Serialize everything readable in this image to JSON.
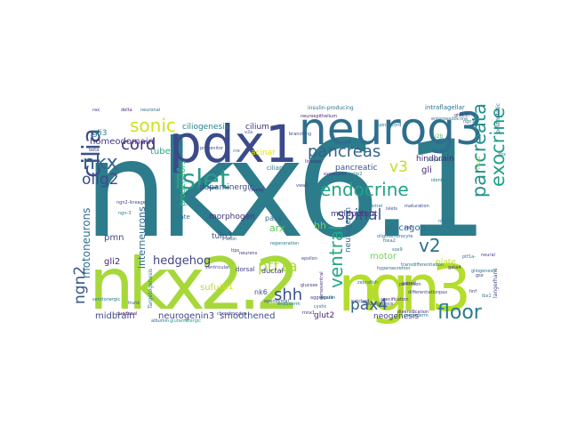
{
  "wordcloud": {
    "words": [
      {
        "text": "nkx6.1",
        "color": "#2c7c8c"
      },
      {
        "text": "nkx2.2",
        "color": "#a6d83a"
      },
      {
        "text": "ngn3",
        "color": "#b4dd2c"
      },
      {
        "text": "pdx1",
        "color": "#3b4a8a"
      },
      {
        "text": "neurog3",
        "color": "#2e6e8e"
      },
      {
        "text": "islet",
        "color": "#2a9a89"
      },
      {
        "text": "pancreas",
        "color": "#34638d"
      },
      {
        "text": "cilia",
        "color": "#3c4f8a"
      },
      {
        "text": "sonic",
        "color": "#d0e11c"
      },
      {
        "text": "nkx",
        "color": "#33628d"
      },
      {
        "text": "cord",
        "color": "#46337e"
      },
      {
        "text": "olig2",
        "color": "#3e4989"
      },
      {
        "text": "endocrine",
        "color": "#20a486"
      },
      {
        "text": "spinal",
        "color": "#39558c"
      },
      {
        "text": "v3",
        "color": "#c2df23"
      },
      {
        "text": "v2",
        "color": "#2c728e"
      },
      {
        "text": "pancreata",
        "color": "#21918c"
      },
      {
        "text": "exocrine",
        "color": "#1fa187"
      },
      {
        "text": "floor",
        "color": "#297b8e"
      },
      {
        "text": "ventral",
        "color": "#22a884"
      },
      {
        "text": "shh",
        "color": "#3b528b"
      },
      {
        "text": "pax4",
        "color": "#365c8d"
      },
      {
        "text": "ptf1a",
        "color": "#aadc32"
      },
      {
        "text": "hedgehog",
        "color": "#414487"
      },
      {
        "text": "ngn2",
        "color": "#38598c"
      },
      {
        "text": "motoneurons",
        "color": "#2d708e"
      },
      {
        "text": "interneurons",
        "color": "#306a8e"
      },
      {
        "text": "homeodomain",
        "color": "#453781"
      },
      {
        "text": "ciliogenesis",
        "color": "#25848e"
      },
      {
        "text": "cilium",
        "color": "#472d7b"
      },
      {
        "text": "gli3",
        "color": "#26828e"
      },
      {
        "text": "tube",
        "color": "#27ad81"
      },
      {
        "text": "glucagon",
        "color": "#2c728e"
      },
      {
        "text": "pancreatic",
        "color": "#3b528b"
      },
      {
        "text": "multipotent",
        "color": "#46327e"
      },
      {
        "text": "gli",
        "color": "#482878"
      },
      {
        "text": "hindbrain",
        "color": "#482173"
      },
      {
        "text": "dopaminergic",
        "color": "#3e4a89"
      },
      {
        "text": "progenitors",
        "color": "#35b779"
      },
      {
        "text": "morphogen",
        "color": "#46337e"
      },
      {
        "text": "tulp3",
        "color": "#3b528b"
      },
      {
        "text": "pmn",
        "color": "#3e4a89"
      },
      {
        "text": "arx",
        "color": "#5ec962"
      },
      {
        "text": "hh",
        "color": "#7ad151"
      },
      {
        "text": "motor",
        "color": "#75d054"
      },
      {
        "text": "neurogenin",
        "color": "#31688e"
      },
      {
        "text": "plate",
        "color": "#bddf26"
      },
      {
        "text": "gli2",
        "color": "#482677"
      },
      {
        "text": "sufu",
        "color": "#b5de2b"
      },
      {
        "text": "isl1",
        "color": "#d8e219"
      },
      {
        "text": "nk6",
        "color": "#3b528b"
      },
      {
        "text": "midbrain",
        "color": "#3e4c8a"
      },
      {
        "text": "neurogenin3",
        "color": "#3f4788"
      },
      {
        "text": "smoothened",
        "color": "#3d4d8a"
      },
      {
        "text": "glut2",
        "color": "#481f70"
      },
      {
        "text": "neogenesis",
        "color": "#424086"
      },
      {
        "text": "acinar",
        "color": "#dde318"
      },
      {
        "text": "pax6",
        "color": "#2e6d8e"
      },
      {
        "text": "ductal",
        "color": "#46327e"
      },
      {
        "text": "dorsal",
        "color": "#433e85"
      },
      {
        "text": "fate",
        "color": "#2d708e"
      },
      {
        "text": "insulin-producing",
        "color": "#2c728e"
      },
      {
        "text": "intraflagellar",
        "color": "#2c728e"
      },
      {
        "text": "postmitotic",
        "color": "#31688e"
      },
      {
        "text": "nkx2",
        "color": "#7ad151"
      },
      {
        "text": "langerhans",
        "color": "#3e4a89"
      },
      {
        "text": "ciliary",
        "color": "#2a788e"
      },
      {
        "text": "caudal",
        "color": "#46307e"
      },
      {
        "text": "neuronal",
        "color": "#31688e"
      },
      {
        "text": "delta",
        "color": "#46307e"
      },
      {
        "text": "rax",
        "color": "#433e85"
      },
      {
        "text": "v2b",
        "color": "#4ac16d"
      },
      {
        "text": "v2a",
        "color": "#38598c"
      },
      {
        "text": "progenitor",
        "color": "#3e4a89"
      },
      {
        "text": "albumin",
        "color": "#306a8e"
      },
      {
        "text": "glutamatergic",
        "color": "#1fa187"
      },
      {
        "text": "hypersecretion",
        "color": "#31688e"
      },
      {
        "text": "transdifferentiation",
        "color": "#2c728e"
      },
      {
        "text": "beta",
        "color": "#3b528b"
      },
      {
        "text": "duodenal",
        "color": "#471365"
      },
      {
        "text": "mnx1",
        "color": "#46307e"
      },
      {
        "text": "patched",
        "color": "#3e4a89"
      },
      {
        "text": "epsilon",
        "color": "#3e4a89"
      },
      {
        "text": "gliogenesis",
        "color": "#2c728e"
      },
      {
        "text": "aggregate",
        "color": "#3f4788"
      },
      {
        "text": "spinal cord",
        "color": "#2a788e"
      },
      {
        "text": "ependymal",
        "color": "#3e4a89"
      },
      {
        "text": "oligodendrocyte",
        "color": "#2c728e"
      },
      {
        "text": "neuroepithelium",
        "color": "#482878"
      },
      {
        "text": "diversification",
        "color": "#46307e"
      },
      {
        "text": "endoderm",
        "color": "#2a788e"
      },
      {
        "text": "branching",
        "color": "#3e4a89"
      },
      {
        "text": "expansion",
        "color": "#433e85"
      },
      {
        "text": "polyductin",
        "color": "#2c728e"
      },
      {
        "text": "identity",
        "color": "#2a788e"
      },
      {
        "text": "paired",
        "color": "#46307e"
      },
      {
        "text": "differentiation",
        "color": "#3e4a89"
      },
      {
        "text": "zebrafish",
        "color": "#2a788e"
      },
      {
        "text": "gsx",
        "color": "#46307e"
      },
      {
        "text": "lbx1",
        "color": "#2c728e"
      },
      {
        "text": "ngn2-lineage",
        "color": "#3e4a89"
      },
      {
        "text": "specification",
        "color": "#46307e"
      },
      {
        "text": "tbx",
        "color": "#2a788e"
      },
      {
        "text": "nkx6.2",
        "color": "#2c728e"
      },
      {
        "text": "pax",
        "color": "#3e4a89"
      },
      {
        "text": "neural",
        "color": "#433e85"
      },
      {
        "text": "sox9",
        "color": "#2a788e"
      },
      {
        "text": "hnf",
        "color": "#46307e"
      },
      {
        "text": "foxa2",
        "color": "#2c728e"
      },
      {
        "text": "maturation",
        "color": "#3e4a89"
      },
      {
        "text": "mafa",
        "color": "#2a788e"
      },
      {
        "text": "lineage",
        "color": "#46307e"
      },
      {
        "text": "cre",
        "color": "#2c728e"
      },
      {
        "text": "islets",
        "color": "#3e4a89"
      },
      {
        "text": "regeneration",
        "color": "#2a788e"
      },
      {
        "text": "tips",
        "color": "#46307e"
      },
      {
        "text": "serotonergic",
        "color": "#2c728e"
      },
      {
        "text": "trunk",
        "color": "#3e4a89"
      },
      {
        "text": "enteroendocrine",
        "color": "#2a788e"
      },
      {
        "text": "ghrelin",
        "color": "#46307e"
      },
      {
        "text": "ngn3+",
        "color": "#2c728e"
      },
      {
        "text": "parkinson",
        "color": "#3e4a89"
      },
      {
        "text": "ptf1a-",
        "color": "#2a788e"
      },
      {
        "text": "neurons",
        "color": "#46307e"
      },
      {
        "text": "axon",
        "color": "#2c728e"
      },
      {
        "text": "ventricular",
        "color": "#3e4a89"
      },
      {
        "text": "cystic",
        "color": "#2a788e"
      },
      {
        "text": "dorsoventral",
        "color": "#46307e"
      },
      {
        "text": "Targetogenesis",
        "color": "#2c728e"
      },
      {
        "text": "neurogenesis",
        "color": "#3e4a89"
      },
      {
        "text": "ngn-3",
        "color": "#2a788e"
      },
      {
        "text": "glucose",
        "color": "#46307e"
      },
      {
        "text": "insulin",
        "color": "#2c728e"
      },
      {
        "text": "chondrocytes",
        "color": "#3e4a89"
      },
      {
        "text": "rostral",
        "color": "#2a788e"
      },
      {
        "text": "sp3",
        "color": "#46307e"
      },
      {
        "text": "mesoderm",
        "color": "#2c728e"
      },
      {
        "text": "vwa8",
        "color": "#3e4a89"
      },
      {
        "text": "ctip2",
        "color": "#2a788e"
      },
      {
        "text": "gata4",
        "color": "#46307e"
      }
    ]
  }
}
